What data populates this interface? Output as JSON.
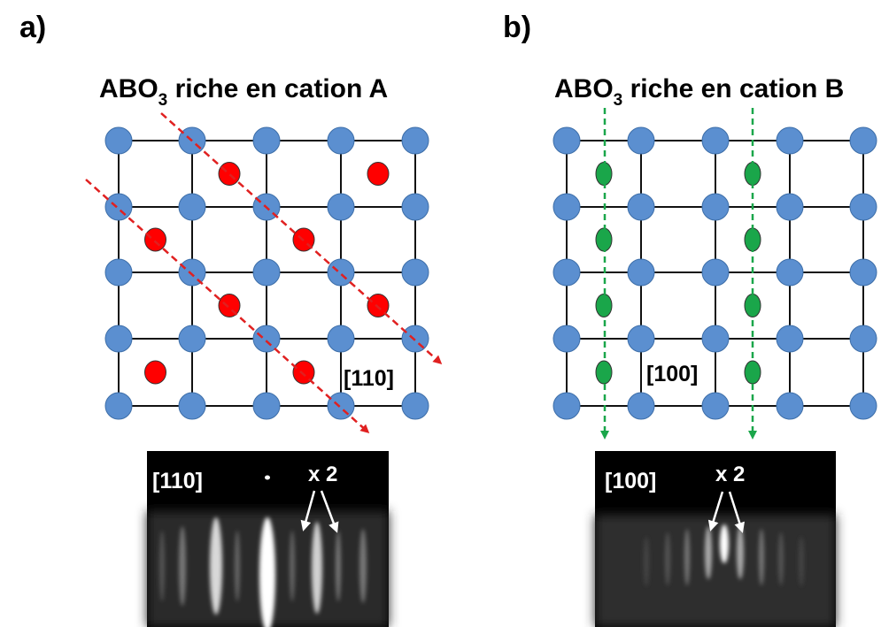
{
  "panel_a": {
    "letter": "a)",
    "title_pre": "ABO",
    "title_sub": "3",
    "title_post": " riche en cation A",
    "direction_label": "[110]",
    "rheed": {
      "label": "[110]",
      "multiplier": "x 2"
    }
  },
  "panel_b": {
    "letter": "b)",
    "title_pre": "ABO",
    "title_sub": "3",
    "title_post": " riche en cation B",
    "direction_label": "[100]",
    "rheed": {
      "label": "[100]",
      "multiplier": "x 2"
    }
  },
  "colors": {
    "lattice_atom": "#5b8fd0",
    "lattice_atom_stroke": "#3d6ea8",
    "cation_a": "#ff0000",
    "cation_b": "#1aa64a",
    "arrow_a": "#e02020",
    "arrow_b": "#1aa64a",
    "rheed_background": "#000000"
  }
}
